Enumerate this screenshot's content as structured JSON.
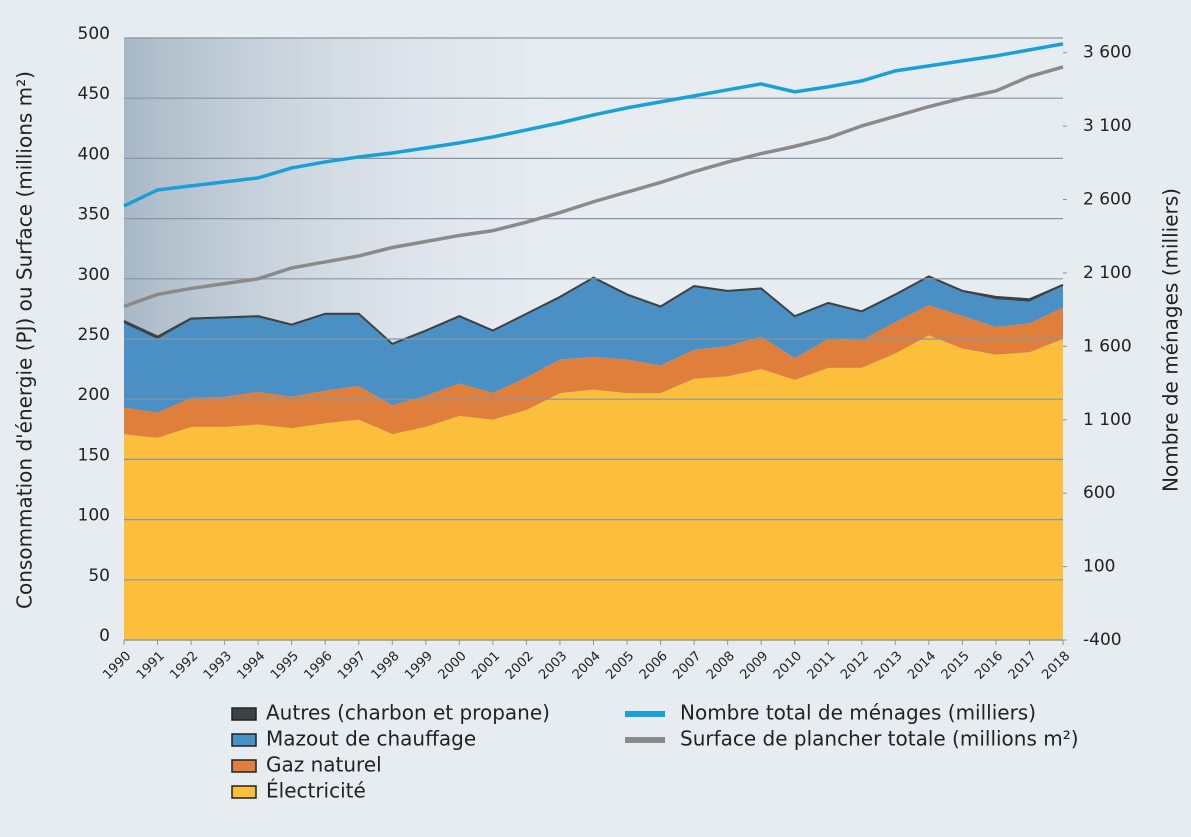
{
  "chart_data": {
    "type": "combo",
    "categories": [
      "1990",
      "1991",
      "1992",
      "1993",
      "1994",
      "1995",
      "1996",
      "1997",
      "1998",
      "1999",
      "2000",
      "2001",
      "2002",
      "2003",
      "2004",
      "2005",
      "2006",
      "2007",
      "2008",
      "2009",
      "2010",
      "2011",
      "2012",
      "2013",
      "2014",
      "2015",
      "2016",
      "2017",
      "2018"
    ],
    "ylabel": "Consommation d'énergie (PJ) ou Surface (millions m²)",
    "y2label": "Nombre de ménages (milliers)",
    "ylim": [
      0,
      500
    ],
    "yticks": [
      0,
      50,
      100,
      150,
      200,
      250,
      300,
      350,
      400,
      450,
      500
    ],
    "y2lim": [
      -400,
      3700
    ],
    "y2ticks": [
      -400,
      100,
      600,
      {
        "value": 1100,
        "label": "1 100"
      },
      {
        "value": 1600,
        "label": "1 600"
      },
      {
        "value": 2100,
        "label": "2 100"
      },
      {
        "value": 2600,
        "label": "2 600"
      },
      {
        "value": 3100,
        "label": "3 100"
      },
      {
        "value": 3600,
        "label": "3 600"
      }
    ],
    "grid": true,
    "stacked": true,
    "series": [
      {
        "name": "Autres (charbon et propane)",
        "type": "area",
        "color": "#3c4346",
        "values": [
          2,
          2,
          1,
          1,
          1,
          1,
          1,
          1,
          1,
          1,
          1,
          1,
          1,
          1,
          1,
          1,
          1,
          1,
          1,
          1,
          1,
          1,
          1,
          1,
          1,
          1,
          2,
          2,
          1
        ]
      },
      {
        "name": "Mazout de chauffage",
        "type": "area",
        "color": "#4a90c4",
        "values": [
          70,
          61,
          65,
          65,
          62,
          59,
          63,
          59,
          50,
          53,
          55,
          51,
          52,
          51,
          65,
          53,
          48,
          52,
          45,
          39,
          34,
          29,
          23,
          22,
          23,
          20,
          23,
          18,
          18
        ]
      },
      {
        "name": "Gaz naturel",
        "type": "area",
        "color": "#e07e3c",
        "values": [
          22,
          21,
          24,
          25,
          27,
          26,
          27,
          28,
          24,
          26,
          27,
          22,
          27,
          28,
          27,
          28,
          23,
          24,
          25,
          27,
          18,
          24,
          23,
          26,
          25,
          27,
          23,
          24,
          26
        ]
      },
      {
        "name": "Électricité",
        "type": "area",
        "color": "#fbbf3c",
        "values": [
          171,
          168,
          177,
          177,
          179,
          176,
          180,
          183,
          171,
          177,
          186,
          183,
          191,
          205,
          208,
          205,
          205,
          217,
          219,
          225,
          216,
          226,
          226,
          238,
          253,
          242,
          237,
          239,
          250
        ]
      },
      {
        "name": "Nombre total de ménages (milliers)",
        "type": "line",
        "axis": "y2",
        "color": "#1aa0d8",
        "values": [
          2556,
          2665,
          2693,
          2720,
          2747,
          2815,
          2856,
          2890,
          2917,
          2951,
          2986,
          3026,
          3074,
          3122,
          3176,
          3224,
          3265,
          3306,
          3347,
          3387,
          3333,
          3367,
          3408,
          3476,
          3510,
          3544,
          3578,
          3619,
          3660
        ]
      },
      {
        "name": "Surface de plancher totale (millions m²)",
        "type": "line",
        "color": "#8a8a8a",
        "values": [
          277,
          287,
          292,
          296,
          300,
          309,
          314,
          319,
          326,
          331,
          336,
          340,
          347,
          355,
          364,
          372,
          380,
          389,
          397,
          404,
          410,
          417,
          427,
          435,
          443,
          450,
          456,
          468,
          476
        ]
      }
    ]
  }
}
